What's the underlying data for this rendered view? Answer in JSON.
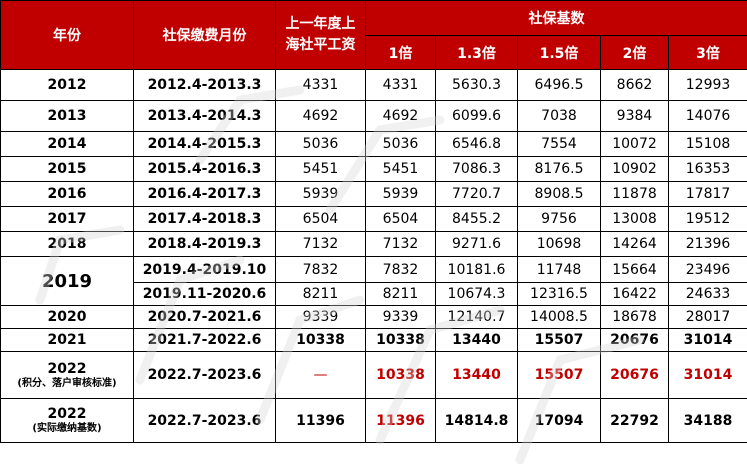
{
  "header": {
    "year": "年份",
    "period": "社保缴费月份",
    "avg_wage": "上一年度上海社平工资",
    "base_group": "社保基数",
    "multipliers": [
      "1倍",
      "1.3倍",
      "1.5倍",
      "2倍",
      "3倍"
    ]
  },
  "rows": [
    {
      "year": "2012",
      "period": "2012.4-2013.3",
      "wage": "4331",
      "v": [
        "4331",
        "5630.3",
        "6496.5",
        "8662",
        "12993"
      ]
    },
    {
      "year": "2013",
      "period": "2013.4-2014.3",
      "wage": "4692",
      "v": [
        "4692",
        "6099.6",
        "7038",
        "9384",
        "14076"
      ]
    },
    {
      "year": "2014",
      "period": "2014.4-2015.3",
      "wage": "5036",
      "v": [
        "5036",
        "6546.8",
        "7554",
        "10072",
        "15108"
      ]
    },
    {
      "year": "2015",
      "period": "2015.4-2016.3",
      "wage": "5451",
      "v": [
        "5451",
        "7086.3",
        "8176.5",
        "10902",
        "16353"
      ]
    },
    {
      "year": "2016",
      "period": "2016.4-2017.3",
      "wage": "5939",
      "v": [
        "5939",
        "7720.7",
        "8908.5",
        "11878",
        "17817"
      ]
    },
    {
      "year": "2017",
      "period": "2017.4-2018.3",
      "wage": "6504",
      "v": [
        "6504",
        "8455.2",
        "9756",
        "13008",
        "19512"
      ]
    },
    {
      "year": "2018",
      "period": "2018.4-2019.3",
      "wage": "7132",
      "v": [
        "7132",
        "9271.6",
        "10698",
        "14264",
        "21396"
      ]
    },
    {
      "year": "2019",
      "period": "2019.4-2019.10",
      "wage": "7832",
      "v": [
        "7832",
        "10181.6",
        "11748",
        "15664",
        "23496"
      ]
    },
    {
      "year": "",
      "period": "2019.11-2020.6",
      "wage": "8211",
      "v": [
        "8211",
        "10674.3",
        "12316.5",
        "16422",
        "24633"
      ]
    },
    {
      "year": "2020",
      "period": "2020.7-2021.6",
      "wage": "9339",
      "v": [
        "9339",
        "12140.7",
        "14008.5",
        "18678",
        "28017"
      ]
    },
    {
      "year": "2021",
      "period": "2021.7-2022.6",
      "wage": "10338",
      "v": [
        "10338",
        "13440",
        "15507",
        "20676",
        "31014"
      ]
    },
    {
      "year": "2022",
      "year_note": "(积分、落户审核标准)",
      "period": "2022.7-2023.6",
      "wage": "—",
      "v": [
        "10338",
        "13440",
        "15507",
        "20676",
        "31014"
      ]
    },
    {
      "year": "2022",
      "year_note": "(实际缴纳基数)",
      "period": "2022.7-2023.6",
      "wage": "11396",
      "v": [
        "11396",
        "14814.8",
        "17094",
        "22792",
        "34188"
      ]
    }
  ],
  "colors": {
    "header_bg": "#c00000",
    "highlight": "#c00000"
  }
}
